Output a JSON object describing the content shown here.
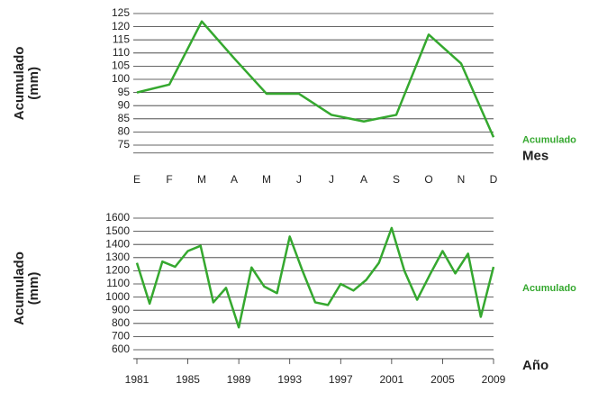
{
  "chart_data": [
    {
      "type": "line",
      "ylabel": [
        "Acumulado",
        "(mm)"
      ],
      "xlabel": "Mes",
      "categories": [
        "E",
        "F",
        "M",
        "A",
        "M",
        "J",
        "J",
        "A",
        "S",
        "O",
        "N",
        "D"
      ],
      "series": [
        {
          "name": "Acumulado",
          "color": "#35a82f",
          "values": [
            95,
            98,
            122,
            108,
            94.5,
            94.5,
            86.5,
            84,
            86.5,
            117,
            106,
            78
          ]
        }
      ],
      "ylim": [
        72,
        125
      ],
      "yticks": [
        75,
        80,
        85,
        90,
        95,
        100,
        105,
        110,
        115,
        120,
        125
      ],
      "grid": true
    },
    {
      "type": "line",
      "ylabel": [
        "Acumulado",
        "(mm)"
      ],
      "xlabel": "Año",
      "x": [
        1981,
        1982,
        1983,
        1984,
        1985,
        1986,
        1987,
        1988,
        1989,
        1990,
        1991,
        1992,
        1993,
        1994,
        1995,
        1996,
        1997,
        1998,
        1999,
        2000,
        2001,
        2002,
        2003,
        2004,
        2005,
        2006,
        2007,
        2008,
        2009
      ],
      "series": [
        {
          "name": "Acumulado",
          "color": "#35a82f",
          "values": [
            1260,
            950,
            1270,
            1230,
            1350,
            1390,
            960,
            1070,
            770,
            1225,
            1080,
            1030,
            1460,
            1200,
            960,
            940,
            1100,
            1050,
            1130,
            1260,
            1525,
            1200,
            980,
            1170,
            1350,
            1180,
            1330,
            850,
            1230
          ]
        }
      ],
      "xlim": [
        1981,
        2009
      ],
      "xticks": [
        1981,
        1985,
        1989,
        1993,
        1997,
        2001,
        2005,
        2009
      ],
      "ylim": [
        532,
        1600
      ],
      "yticks": [
        600,
        700,
        800,
        900,
        1000,
        1100,
        1200,
        1300,
        1400,
        1500,
        1600
      ],
      "grid": true
    }
  ]
}
